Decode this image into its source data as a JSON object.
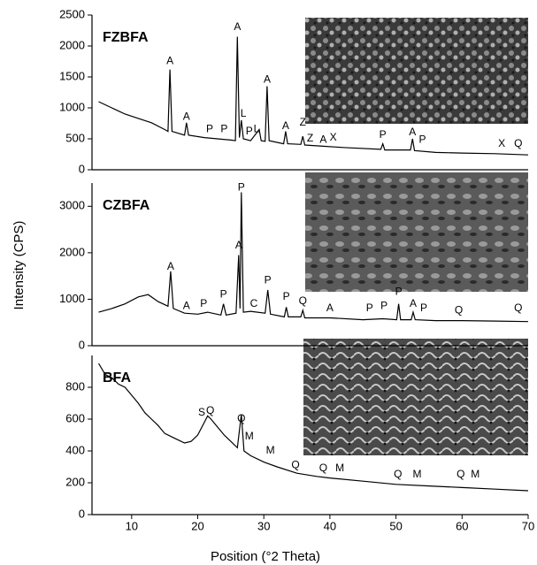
{
  "figure": {
    "xlabel": "Position (°2 Theta)",
    "ylabel": "Intensity (CPS)"
  },
  "chart_data": [
    {
      "type": "line",
      "title": "FZBFA",
      "color": "#000000",
      "x": [
        5,
        7,
        9,
        11,
        13,
        15,
        15.5,
        15.8,
        16.1,
        18,
        18.3,
        18.6,
        21,
        23,
        25,
        25.7,
        26.0,
        26.3,
        26.6,
        26.9,
        28,
        29.3,
        29.6,
        30.2,
        30.5,
        30.8,
        33,
        33.3,
        33.6,
        35.6,
        35.9,
        36.2,
        39,
        42,
        47.7,
        48,
        48.3,
        52.2,
        52.5,
        52.8,
        56,
        60,
        65,
        70
      ],
      "values": [
        1100,
        1000,
        900,
        830,
        760,
        650,
        620,
        1620,
        620,
        560,
        760,
        560,
        520,
        500,
        480,
        470,
        2150,
        520,
        800,
        500,
        470,
        650,
        470,
        460,
        1350,
        470,
        420,
        620,
        420,
        410,
        540,
        400,
        380,
        360,
        330,
        420,
        320,
        320,
        500,
        310,
        280,
        270,
        260,
        240
      ],
      "xlim": [
        4,
        70
      ],
      "ylim": [
        0,
        2500
      ],
      "yticks": [
        0,
        500,
        1000,
        1500,
        2000,
        2500
      ],
      "annotations": [
        {
          "text": "A",
          "x": 15.8,
          "y": 1750
        },
        {
          "text": "A",
          "x": 18.3,
          "y": 850
        },
        {
          "text": "P",
          "x": 21.8,
          "y": 650
        },
        {
          "text": "P",
          "x": 24,
          "y": 650
        },
        {
          "text": "A",
          "x": 26,
          "y": 2300
        },
        {
          "text": "L",
          "x": 26.9,
          "y": 900
        },
        {
          "text": "P",
          "x": 27.8,
          "y": 620
        },
        {
          "text": "L",
          "x": 28.9,
          "y": 650
        },
        {
          "text": "A",
          "x": 30.5,
          "y": 1450
        },
        {
          "text": "A",
          "x": 33.3,
          "y": 700
        },
        {
          "text": "Z",
          "x": 35.9,
          "y": 760
        },
        {
          "text": "Z",
          "x": 37,
          "y": 500
        },
        {
          "text": "A",
          "x": 39,
          "y": 480
        },
        {
          "text": "X",
          "x": 40.5,
          "y": 520
        },
        {
          "text": "P",
          "x": 48,
          "y": 560
        },
        {
          "text": "A",
          "x": 52.5,
          "y": 600
        },
        {
          "text": "P",
          "x": 54,
          "y": 480
        },
        {
          "text": "X",
          "x": 66,
          "y": 420
        },
        {
          "text": "Q",
          "x": 68.5,
          "y": 420
        }
      ]
    },
    {
      "type": "line",
      "title": "CZBFA",
      "color": "#000000",
      "x": [
        5,
        7,
        9,
        11,
        12.5,
        14,
        15.5,
        15.9,
        16.3,
        18,
        20,
        21.5,
        23.5,
        23.9,
        24.3,
        25.8,
        26.2,
        26.4,
        26.6,
        26.9,
        28,
        30.2,
        30.6,
        31,
        33.1,
        33.4,
        33.7,
        35.6,
        35.9,
        36.2,
        40,
        45,
        48,
        50.1,
        50.4,
        50.7,
        52.3,
        52.6,
        52.9,
        56,
        60,
        65,
        70
      ],
      "values": [
        720,
        800,
        900,
        1050,
        1100,
        950,
        850,
        1600,
        800,
        700,
        680,
        720,
        660,
        900,
        660,
        700,
        1950,
        800,
        3300,
        720,
        740,
        700,
        1200,
        680,
        620,
        830,
        620,
        620,
        760,
        600,
        600,
        560,
        580,
        560,
        900,
        560,
        560,
        720,
        560,
        540,
        540,
        530,
        520
      ],
      "xlim": [
        4,
        70
      ],
      "ylim": [
        0,
        3500
      ],
      "yticks": [
        0,
        1000,
        2000,
        3000
      ],
      "annotations": [
        {
          "text": "A",
          "x": 15.9,
          "y": 1700
        },
        {
          "text": "A",
          "x": 18.3,
          "y": 850
        },
        {
          "text": "P",
          "x": 20.9,
          "y": 900
        },
        {
          "text": "P",
          "x": 23.9,
          "y": 1100
        },
        {
          "text": "A",
          "x": 26.2,
          "y": 2150
        },
        {
          "text": "P",
          "x": 26.6,
          "y": 3400
        },
        {
          "text": "C",
          "x": 28.5,
          "y": 900
        },
        {
          "text": "P",
          "x": 30.6,
          "y": 1400
        },
        {
          "text": "P",
          "x": 33.4,
          "y": 1050
        },
        {
          "text": "Q",
          "x": 35.9,
          "y": 950
        },
        {
          "text": "A",
          "x": 40,
          "y": 800
        },
        {
          "text": "P",
          "x": 46,
          "y": 800
        },
        {
          "text": "P",
          "x": 48.2,
          "y": 850
        },
        {
          "text": "P",
          "x": 50.4,
          "y": 1150
        },
        {
          "text": "A",
          "x": 52.6,
          "y": 900
        },
        {
          "text": "P",
          "x": 54.2,
          "y": 800
        },
        {
          "text": "Q",
          "x": 59.5,
          "y": 750
        },
        {
          "text": "Q",
          "x": 68.5,
          "y": 800
        }
      ]
    },
    {
      "type": "line",
      "title": "BFA",
      "color": "#000000",
      "x": [
        5,
        6,
        7,
        8,
        9,
        10,
        11,
        12,
        13,
        14,
        15,
        16,
        17,
        18,
        19,
        20,
        21,
        21.5,
        22,
        23,
        24,
        25,
        26,
        26.6,
        27,
        28,
        30,
        32,
        35,
        38,
        40,
        45,
        50,
        55,
        60,
        65,
        70
      ],
      "values": [
        950,
        880,
        860,
        820,
        800,
        750,
        700,
        640,
        600,
        560,
        510,
        490,
        470,
        450,
        460,
        500,
        580,
        620,
        600,
        550,
        500,
        460,
        420,
        630,
        400,
        370,
        330,
        300,
        260,
        240,
        230,
        210,
        190,
        180,
        170,
        160,
        150
      ],
      "xlim": [
        4,
        70
      ],
      "ylim": [
        0,
        1000
      ],
      "yticks": [
        0,
        200,
        400,
        600,
        800
      ],
      "xticks": [
        10,
        20,
        30,
        40,
        50,
        60,
        70
      ],
      "annotations": [
        {
          "text": "S",
          "x": 20.6,
          "y": 640
        },
        {
          "text": "Q",
          "x": 21.9,
          "y": 650
        },
        {
          "text": "Q",
          "x": 26.6,
          "y": 600
        },
        {
          "text": "M",
          "x": 27.8,
          "y": 490
        },
        {
          "text": "M",
          "x": 31,
          "y": 400
        },
        {
          "text": "Q",
          "x": 34.8,
          "y": 310
        },
        {
          "text": "Q",
          "x": 39,
          "y": 290
        },
        {
          "text": "M",
          "x": 41.5,
          "y": 290
        },
        {
          "text": "Q",
          "x": 50.3,
          "y": 250
        },
        {
          "text": "M",
          "x": 53.2,
          "y": 250
        },
        {
          "text": "Q",
          "x": 59.8,
          "y": 250
        },
        {
          "text": "M",
          "x": 62,
          "y": 250
        }
      ]
    }
  ]
}
